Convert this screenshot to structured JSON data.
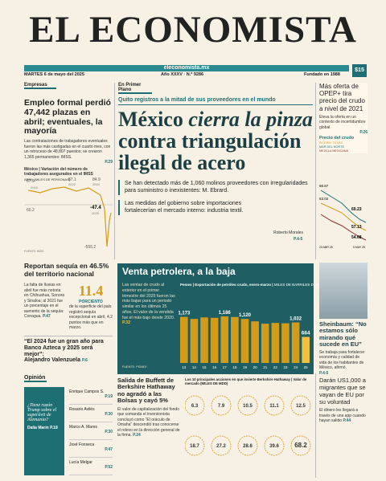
{
  "header": {
    "title": "EL ECONOMISTA",
    "website": "eleconomista.mx",
    "date": "MARTES 6 de mayo del 2025",
    "issue": "Año XXXV · N.º 9286",
    "founded": "Fundado en 1988",
    "price": "$15"
  },
  "employment": {
    "section": "Empresas",
    "headline": "Empleo formal perdió 47,442 plazas en abril; eventuales, la mayoría",
    "bullet": "Las contrataciones de trabajadores eventuales fueron las más castigadas en el cuarto mes, con un retroceso de 48,807 puestos; se crearon 1,365 permanentes: IMSS.",
    "page": "P.29",
    "chart_title": "México | Variación del número de trabajadores asegurados en el IMSS",
    "chart_unit": "ABRIL (MILES DE PERSONAS)",
    "labels": [
      "67.9",
      "87.1",
      "84.9",
      "60.2",
      "-47.4",
      "-555.2"
    ],
    "years": [
      "2019",
      "2022",
      "2024",
      "2025"
    ],
    "source": "FUENTE: IMSS"
  },
  "main": {
    "kicker": "En Primer Plano",
    "subhead": "Quito registros a la mitad de sus proveedores en el mundo",
    "headline_1": "México",
    "headline_2": "cierra la pinza",
    "headline_3": "contra triangulación ilegal de acero",
    "bullets": [
      "Se han detectado más de 1,060 molinos proveedores con irregularidades para suministro o inexistentes: M. Ebrard.",
      "Las medidas del gobierno sobre importaciones fortalecerían el mercado interno: industria textil."
    ],
    "author": "Roberto Morales",
    "page": "P.4-5"
  },
  "opec": {
    "headline": "Más oferta de OPEP+ tira precio del crudo a nivel de 2021",
    "bullet": "Eleva la oferta en un contexto de incertidumbre global",
    "page": "P.26",
    "chart_title": "Precio del crudo",
    "legend": [
      "INTERM. TEXAS",
      "MAR DEL NORTE",
      "MEZCLA MEXICANA"
    ],
    "labels": [
      "66.87",
      "63.02",
      "60.23",
      "57.13",
      "54.68"
    ],
    "dates": [
      "23 ABR 25",
      "5 MAY 25"
    ]
  },
  "sheinbaum": {
    "headline": "Sheinbaum: “No estamos sólo mirando qué sucede en EU”",
    "bullet": "Se trabaja para fortalecer economía y calidad de vida de los habitantes de México, afirmó.",
    "page": "P.4-5"
  },
  "drought": {
    "headline": "Reportan sequía en 46.5% del territorio nacional",
    "left": "La falta de lluvias en abril fue más notoria en Chihuahua, Sonora y Sinaloa; al 2021 fue un porcentaje en el aumento de la sequía: Conagua.",
    "page": "P.47",
    "figure": "11.4",
    "figure_unit": "PORCIENTO",
    "figure_text": "de la superficie del país registró sequía excepcional en abril, 4.2 puntos más que en marzo."
  },
  "azteca": {
    "quote": "“El 2024 fue un gran año para Banco Azteca y 2025 será mejor”:",
    "author": "Alejandro Valenzuela",
    "page": "P.6"
  },
  "oil": {
    "headline": "Venta petrolera, a la baja",
    "text": "Las ventas de crudo al exterior en el primer trimestre del 2025 fueron las más bajas para un periodo similar en los últimos 25 años. El valor de la vendida fue el más bajo desde 2020.",
    "page": "P.32",
    "chart_title": "Pemex | Exportación de petróleo crudo, enero-marzo",
    "chart_unit": "MILES DE BARRILES DIARIOS",
    "source": "FUENTE: PEMEX",
    "years": [
      "13",
      "14",
      "15",
      "16",
      "17",
      "18",
      "19",
      "20",
      "21",
      "22",
      "23",
      "24",
      "25"
    ],
    "values": [
      1173,
      1122,
      1160,
      1150,
      1186,
      1170,
      1120,
      1060,
      1000,
      1020,
      1010,
      1032,
      664
    ],
    "value_labels": [
      "1,173",
      null,
      null,
      null,
      "1,186",
      null,
      "1,120",
      null,
      null,
      null,
      null,
      "1,032",
      null
    ]
  },
  "opinion": {
    "section": "Opinión",
    "feature_title": "¿Tiene razón Trump sobre el superávit de Alemania?",
    "feature_author": "Dalia Marín",
    "feature_page": "P.18",
    "columnists": [
      [
        "Enrique Campos S.",
        "P.19"
      ],
      [
        "Rosario Avilés",
        "P.30"
      ],
      [
        "Marco A. Mares",
        "P.30"
      ],
      [
        "José Fonseca",
        "P.47"
      ],
      [
        "Lucía Melgar",
        "P.52"
      ]
    ]
  },
  "buffett": {
    "headline": "Salida de Buffett de Berkshire Hathaway no agradó a las Bolsas y cayó 5%",
    "bullet": "El valor de capitalización del fondo que comanda el inversionista concluyó como “El oráculo de Omaha” descendió tras conocerse el relevo en la dirección general de la firma.",
    "page": "P.24",
    "chart_title": "Los 10 principales acciones en que invierte Berkshire Hathaway | Valor de mercado",
    "chart_unit": "(MILES DE MDD)",
    "values": [
      "6.3",
      "7.9",
      "10.5",
      "11.1",
      "12.5",
      "18.7",
      "27.2",
      "28.6",
      "39.6",
      "68.2"
    ]
  },
  "migrants": {
    "headline": "Darán US1,000 a migrantes que se vayan de EU por su voluntad",
    "bullet": "El dinero les llegará a través de una app cuando hayan salido",
    "page": "P.44"
  }
}
